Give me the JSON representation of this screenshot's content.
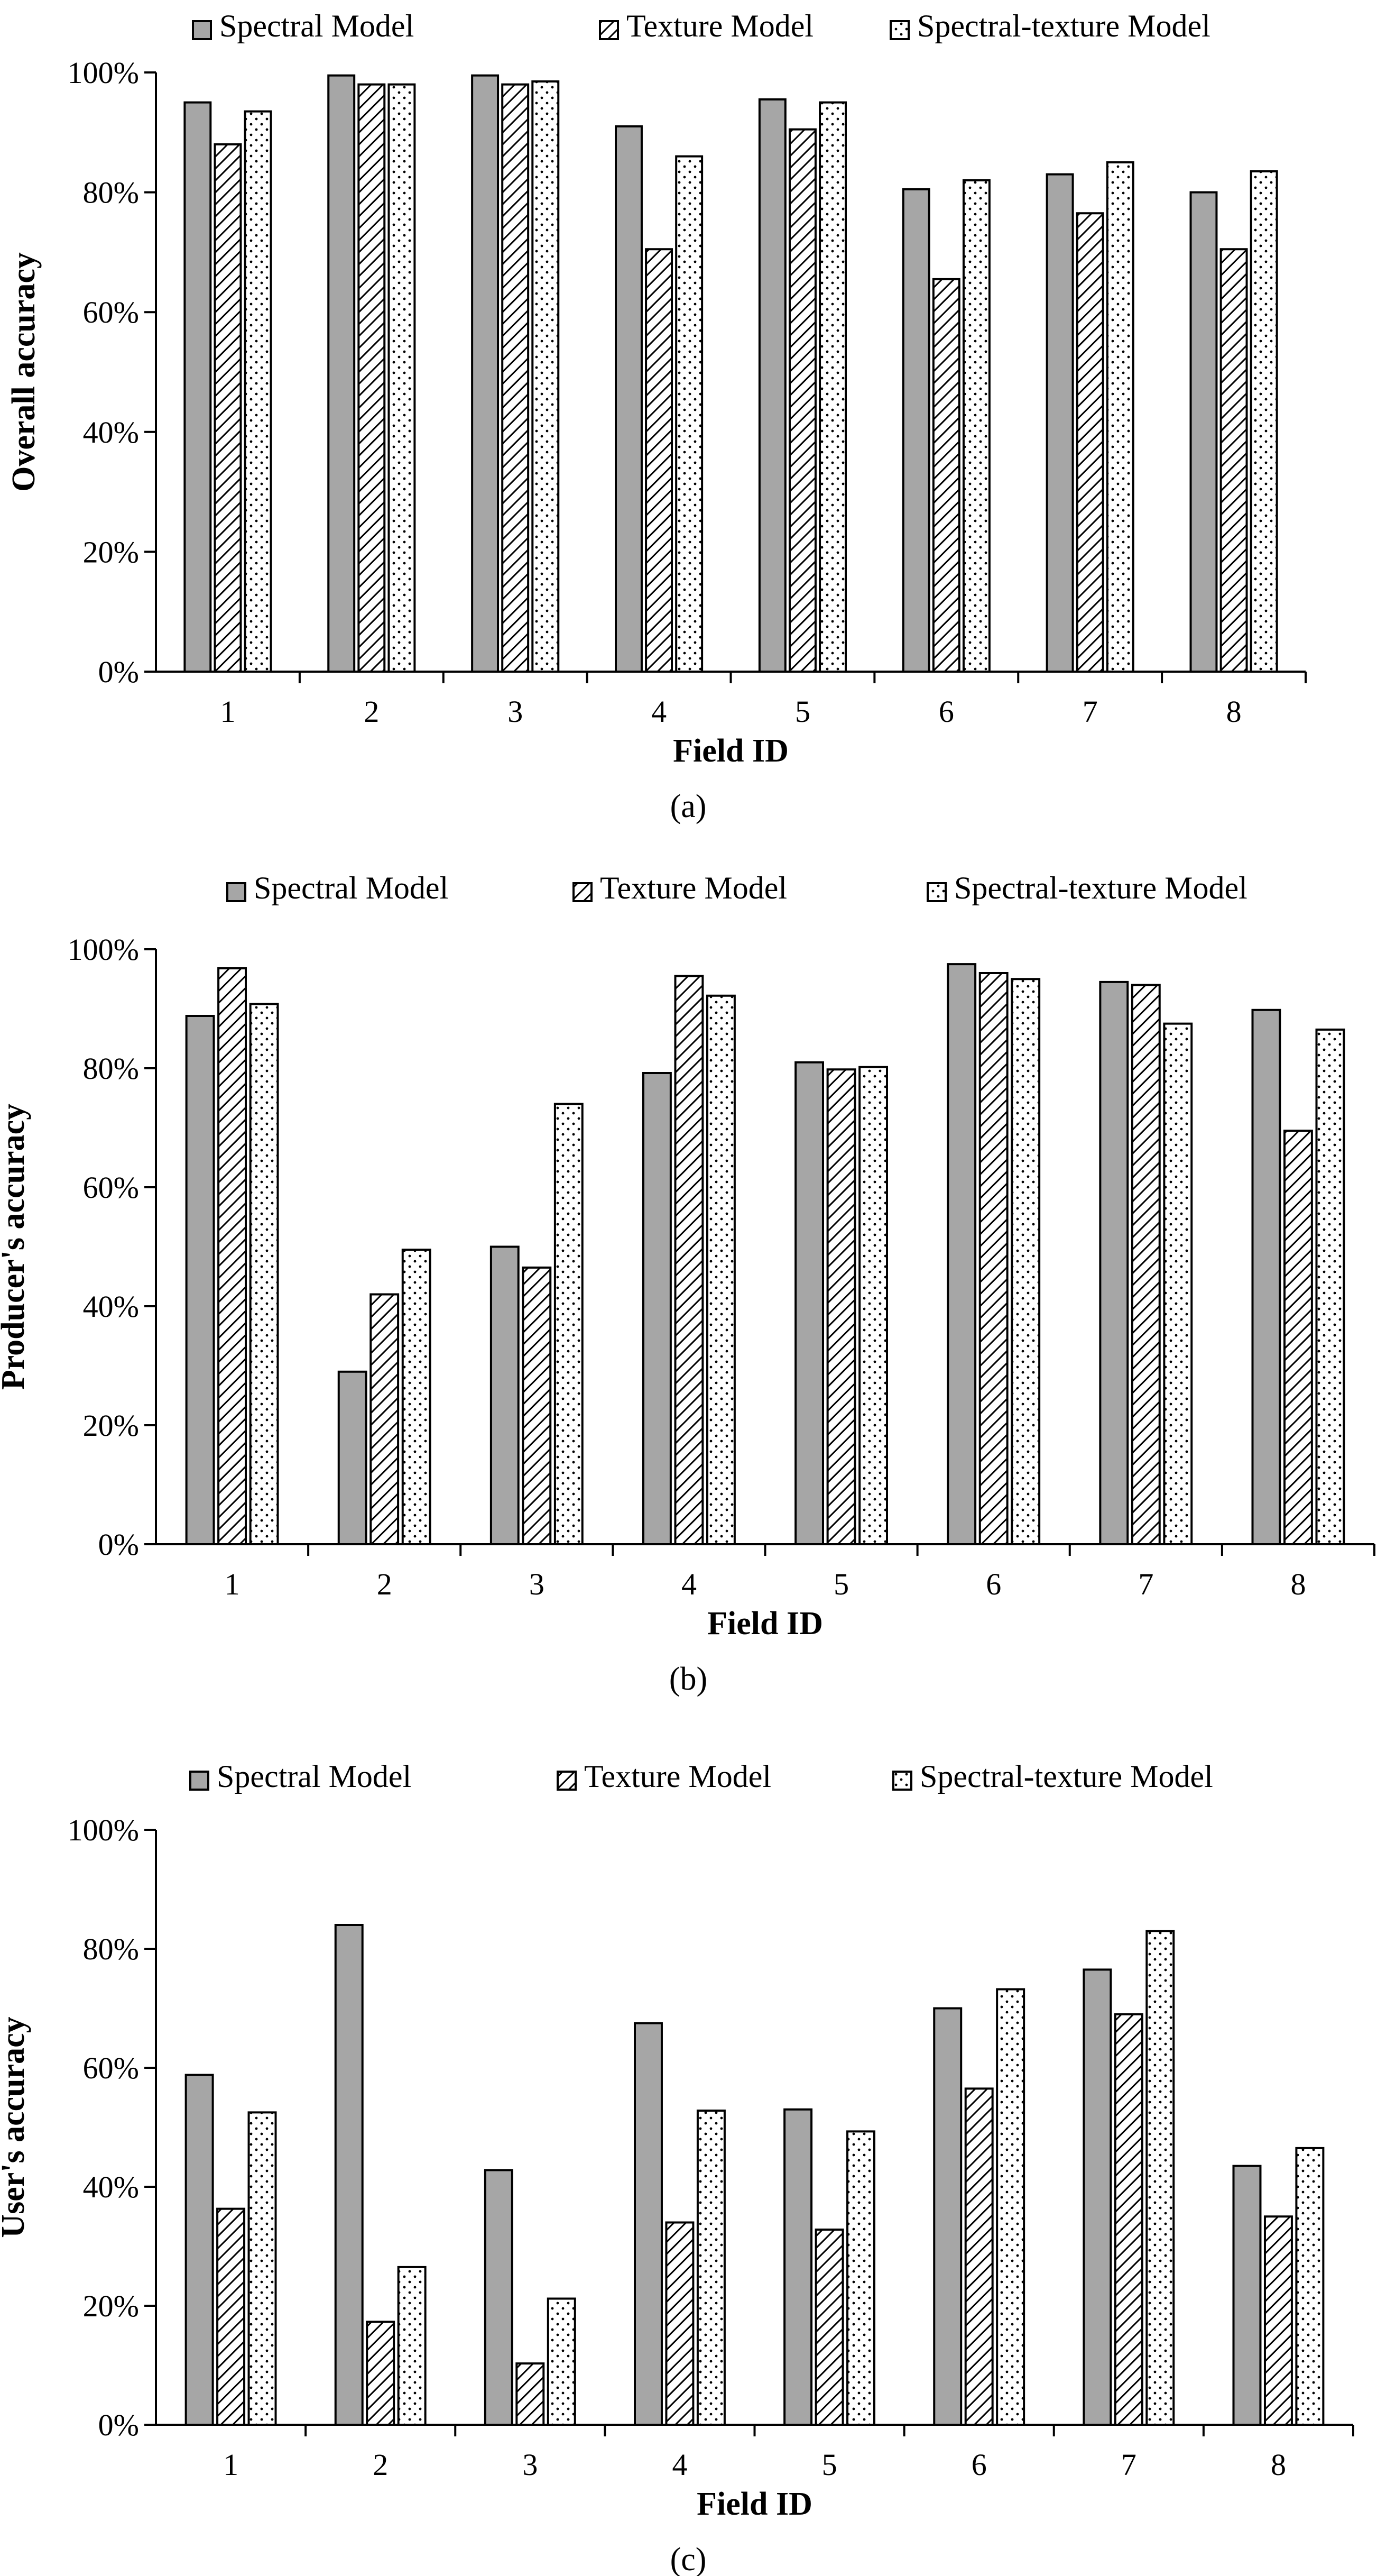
{
  "colors": {
    "spectral_fill": "#a6a6a6",
    "texture_fill": "#ffffff",
    "spectral_texture_fill": "#ffffff",
    "axis": "#000000"
  },
  "chart_data": [
    {
      "type": "bar",
      "caption": "(a)",
      "xlabel": "Field ID",
      "ylabel": "Overall accuracy",
      "categories": [
        "1",
        "2",
        "3",
        "4",
        "5",
        "6",
        "7",
        "8"
      ],
      "yticks": [
        "0%",
        "20%",
        "40%",
        "60%",
        "80%",
        "100%"
      ],
      "ylim": [
        0,
        100
      ],
      "legend": [
        "Spectral Model",
        "Texture Model",
        "Spectral-texture Model"
      ],
      "series": [
        {
          "name": "Spectral Model",
          "pattern": "solid-gray",
          "values": [
            95.0,
            99.5,
            99.5,
            91.0,
            95.5,
            80.5,
            83.0,
            80.0
          ]
        },
        {
          "name": "Texture Model",
          "pattern": "diagonal-hatch",
          "values": [
            88.0,
            98.0,
            98.0,
            70.5,
            90.5,
            65.5,
            76.5,
            70.5
          ]
        },
        {
          "name": "Spectral-texture Model",
          "pattern": "dots",
          "values": [
            93.5,
            98.0,
            98.5,
            86.0,
            95.0,
            82.0,
            85.0,
            83.5
          ]
        }
      ]
    },
    {
      "type": "bar",
      "caption": "(b)",
      "xlabel": "Field ID",
      "ylabel": "Producer's accuracy",
      "categories": [
        "1",
        "2",
        "3",
        "4",
        "5",
        "6",
        "7",
        "8"
      ],
      "yticks": [
        "0%",
        "20%",
        "40%",
        "60%",
        "80%",
        "100%"
      ],
      "ylim": [
        0,
        100
      ],
      "legend": [
        "Spectral Model",
        "Texture Model",
        "Spectral-texture Model"
      ],
      "series": [
        {
          "name": "Spectral Model",
          "pattern": "solid-gray",
          "values": [
            88.8,
            29.0,
            50.0,
            79.2,
            81.0,
            97.5,
            94.5,
            89.8
          ]
        },
        {
          "name": "Texture Model",
          "pattern": "diagonal-hatch",
          "values": [
            96.8,
            42.0,
            46.5,
            95.5,
            79.8,
            96.0,
            94.0,
            69.5
          ]
        },
        {
          "name": "Spectral-texture Model",
          "pattern": "dots",
          "values": [
            90.8,
            49.5,
            74.0,
            92.2,
            80.2,
            95.0,
            87.5,
            86.5
          ]
        }
      ]
    },
    {
      "type": "bar",
      "caption": "(c)",
      "xlabel": "Field ID",
      "ylabel": "User's accuracy",
      "categories": [
        "1",
        "2",
        "3",
        "4",
        "5",
        "6",
        "7",
        "8"
      ],
      "yticks": [
        "0%",
        "20%",
        "40%",
        "60%",
        "80%",
        "100%"
      ],
      "ylim": [
        0,
        100
      ],
      "legend": [
        "Spectral Model",
        "Texture Model",
        "Spectral-texture Model"
      ],
      "series": [
        {
          "name": "Spectral Model",
          "pattern": "solid-gray",
          "values": [
            58.8,
            84.0,
            42.8,
            67.5,
            53.0,
            70.0,
            76.5,
            43.5
          ]
        },
        {
          "name": "Texture Model",
          "pattern": "diagonal-hatch",
          "values": [
            36.3,
            17.3,
            10.3,
            34.0,
            32.8,
            56.5,
            69.0,
            35.0
          ]
        },
        {
          "name": "Spectral-texture Model",
          "pattern": "dots",
          "values": [
            52.5,
            26.5,
            21.2,
            52.8,
            49.3,
            73.2,
            83.0,
            46.5
          ]
        }
      ]
    }
  ]
}
